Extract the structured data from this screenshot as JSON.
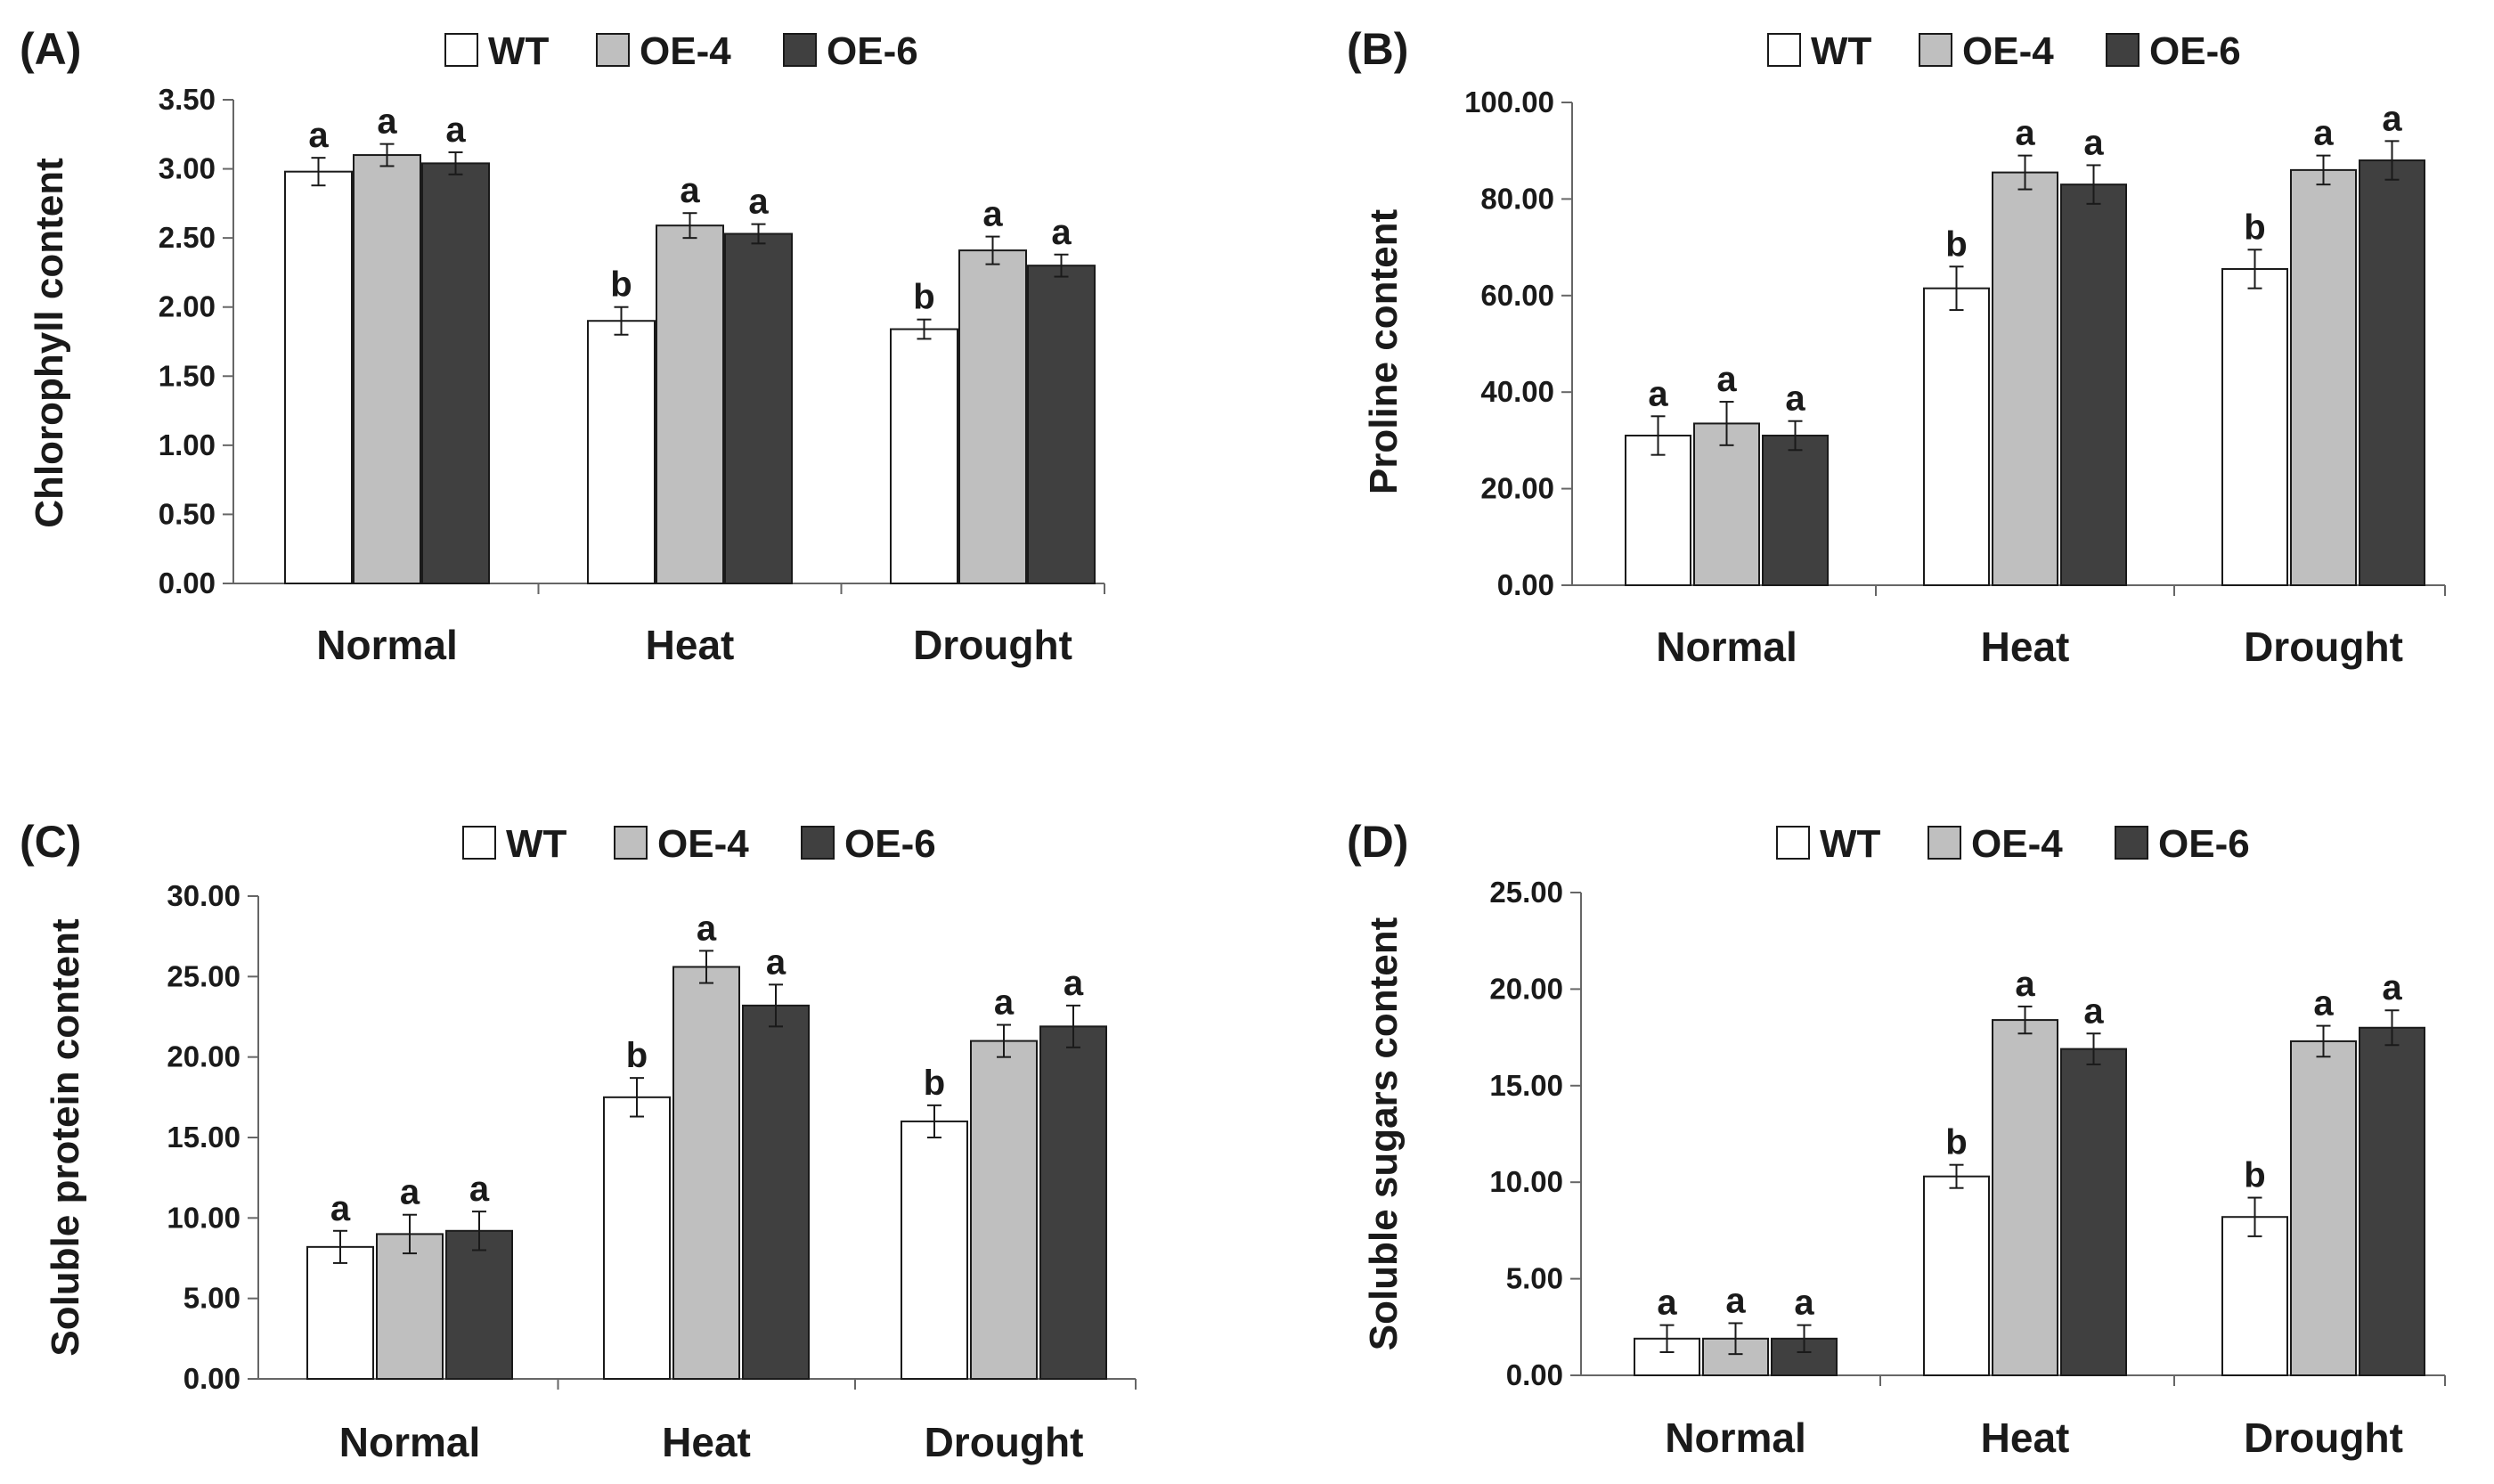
{
  "legend": [
    {
      "name": "WT",
      "color": "#ffffff"
    },
    {
      "name": "OE-4",
      "color": "#bfbfbf"
    },
    {
      "name": "OE-6",
      "color": "#404040"
    }
  ],
  "chart_data": [
    {
      "type": "bar",
      "panel": "(A)",
      "ylabel": "Chlorophyll content",
      "xlabel": "",
      "ylim": [
        0,
        3.5
      ],
      "yticks": [
        "0.00",
        "0.50",
        "1.00",
        "1.50",
        "2.00",
        "2.50",
        "3.00",
        "3.50"
      ],
      "categories": [
        "Normal",
        "Heat",
        "Drought"
      ],
      "series": [
        {
          "name": "WT",
          "values": [
            2.98,
            1.9,
            1.84
          ],
          "errors": [
            0.1,
            0.1,
            0.07
          ],
          "labels": [
            "a",
            "b",
            "b"
          ]
        },
        {
          "name": "OE-4",
          "values": [
            3.1,
            2.59,
            2.41
          ],
          "errors": [
            0.08,
            0.09,
            0.1
          ],
          "labels": [
            "a",
            "a",
            "a"
          ]
        },
        {
          "name": "OE-6",
          "values": [
            3.04,
            2.53,
            2.3
          ],
          "errors": [
            0.08,
            0.07,
            0.08
          ],
          "labels": [
            "a",
            "a",
            "a"
          ]
        }
      ]
    },
    {
      "type": "bar",
      "panel": "(B)",
      "ylabel": "Proline content",
      "xlabel": "",
      "ylim": [
        0,
        100
      ],
      "yticks": [
        "0.00",
        "20.00",
        "40.00",
        "60.00",
        "80.00",
        "100.00"
      ],
      "categories": [
        "Normal",
        "Heat",
        "Drought"
      ],
      "series": [
        {
          "name": "WT",
          "values": [
            31,
            61.5,
            65.5
          ],
          "errors": [
            4,
            4.5,
            4
          ],
          "labels": [
            "a",
            "b",
            "b"
          ]
        },
        {
          "name": "OE-4",
          "values": [
            33.5,
            85.5,
            86
          ],
          "errors": [
            4.5,
            3.5,
            3
          ],
          "labels": [
            "a",
            "a",
            "a"
          ]
        },
        {
          "name": "OE-6",
          "values": [
            31,
            83,
            88
          ],
          "errors": [
            3,
            4,
            4
          ],
          "labels": [
            "a",
            "a",
            "a"
          ]
        }
      ]
    },
    {
      "type": "bar",
      "panel": "(C)",
      "ylabel": "Soluble protein content",
      "xlabel": "",
      "ylim": [
        0,
        30
      ],
      "yticks": [
        "0.00",
        "5.00",
        "10.00",
        "15.00",
        "20.00",
        "25.00",
        "30.00"
      ],
      "categories": [
        "Normal",
        "Heat",
        "Drought"
      ],
      "series": [
        {
          "name": "WT",
          "values": [
            8.2,
            17.5,
            16.0
          ],
          "errors": [
            1.0,
            1.2,
            1.0
          ],
          "labels": [
            "a",
            "b",
            "b"
          ]
        },
        {
          "name": "OE-4",
          "values": [
            9.0,
            25.6,
            21.0
          ],
          "errors": [
            1.2,
            1.0,
            1.0
          ],
          "labels": [
            "a",
            "a",
            "a"
          ]
        },
        {
          "name": "OE-6",
          "values": [
            9.2,
            23.2,
            21.9
          ],
          "errors": [
            1.2,
            1.3,
            1.3
          ],
          "labels": [
            "a",
            "a",
            "a"
          ]
        }
      ]
    },
    {
      "type": "bar",
      "panel": "(D)",
      "ylabel": "Soluble sugars content",
      "xlabel": "",
      "ylim": [
        0,
        25
      ],
      "yticks": [
        "0.00",
        "5.00",
        "10.00",
        "15.00",
        "20.00",
        "25.00"
      ],
      "categories": [
        "Normal",
        "Heat",
        "Drought"
      ],
      "series": [
        {
          "name": "WT",
          "values": [
            1.9,
            10.3,
            8.2
          ],
          "errors": [
            0.7,
            0.6,
            1.0
          ],
          "labels": [
            "a",
            "b",
            "b"
          ]
        },
        {
          "name": "OE-4",
          "values": [
            1.9,
            18.4,
            17.3
          ],
          "errors": [
            0.8,
            0.7,
            0.8
          ],
          "labels": [
            "a",
            "a",
            "a"
          ]
        },
        {
          "name": "OE-6",
          "values": [
            1.9,
            16.9,
            18.0
          ],
          "errors": [
            0.7,
            0.8,
            0.9
          ],
          "labels": [
            "a",
            "a",
            "a"
          ]
        }
      ]
    }
  ]
}
